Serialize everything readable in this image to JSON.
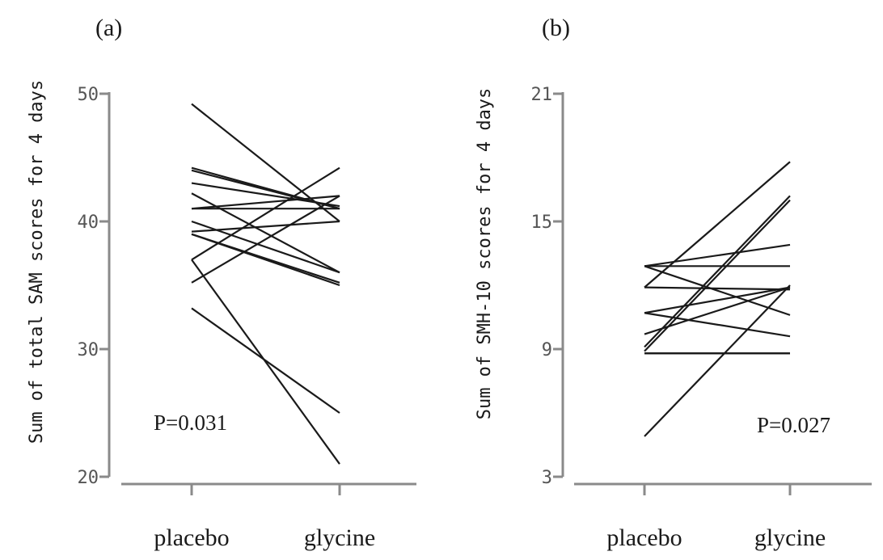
{
  "chart_data": [
    {
      "type": "line",
      "panel_label": "(a)",
      "ylabel": "Sum of total SAM scores for 4 days",
      "categories": [
        "placebo",
        "glycine"
      ],
      "ylim": [
        20,
        50
      ],
      "yticks": [
        20,
        30,
        40,
        50
      ],
      "annotation": "P=0.031",
      "series": [
        {
          "values": [
            49.2,
            40.0
          ]
        },
        {
          "values": [
            44.2,
            41.0
          ]
        },
        {
          "values": [
            44.0,
            41.0
          ]
        },
        {
          "values": [
            43.0,
            41.2
          ]
        },
        {
          "values": [
            42.2,
            36.0
          ]
        },
        {
          "values": [
            41.0,
            42.0
          ]
        },
        {
          "values": [
            41.0,
            41.0
          ]
        },
        {
          "values": [
            40.0,
            36.0
          ]
        },
        {
          "values": [
            39.2,
            40.0
          ]
        },
        {
          "values": [
            39.0,
            35.2
          ]
        },
        {
          "values": [
            39.0,
            35.0
          ]
        },
        {
          "values": [
            37.0,
            44.2
          ]
        },
        {
          "values": [
            37.0,
            21.0
          ]
        },
        {
          "values": [
            35.2,
            42.0
          ]
        },
        {
          "values": [
            33.2,
            25.0
          ]
        }
      ]
    },
    {
      "type": "line",
      "panel_label": "(b)",
      "ylabel": "Sum of  SMH-10 scores for 4 days",
      "categories": [
        "placebo",
        "glycine"
      ],
      "ylim": [
        3,
        21
      ],
      "yticks": [
        3,
        9,
        15,
        21
      ],
      "annotation": "P=0.027",
      "series": [
        {
          "values": [
            12.9,
            10.6
          ]
        },
        {
          "values": [
            12.9,
            12.9
          ]
        },
        {
          "values": [
            12.9,
            13.9
          ]
        },
        {
          "values": [
            11.9,
            17.8
          ]
        },
        {
          "values": [
            11.9,
            11.8
          ]
        },
        {
          "values": [
            10.7,
            11.9
          ]
        },
        {
          "values": [
            10.7,
            9.6
          ]
        },
        {
          "values": [
            9.7,
            11.9
          ]
        },
        {
          "values": [
            9.1,
            16.2
          ]
        },
        {
          "values": [
            8.9,
            16.0
          ]
        },
        {
          "values": [
            8.8,
            8.8
          ]
        },
        {
          "values": [
            8.8,
            8.8
          ]
        },
        {
          "values": [
            4.9,
            12.0
          ]
        }
      ]
    }
  ]
}
